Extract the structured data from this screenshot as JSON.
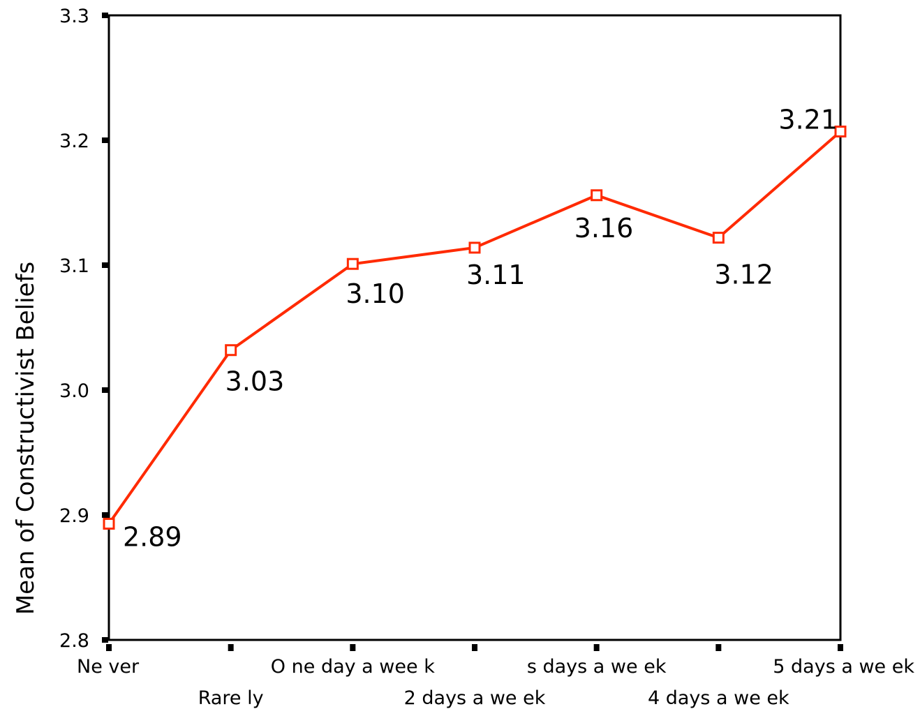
{
  "chart_data": {
    "type": "line",
    "title": "",
    "xlabel": "",
    "ylabel": "Mean of Constructivist Beliefs",
    "categories": [
      "Ne ver",
      "Rare ly",
      "O ne day a wee k",
      "2 days a we ek",
      "s days a we ek",
      "4 days a we ek",
      "5 days a we ek"
    ],
    "series": [
      {
        "values": [
          2.893,
          3.032,
          3.101,
          3.114,
          3.156,
          3.122,
          3.207
        ],
        "labels": [
          "2.89",
          "3.03",
          "3.10",
          "3.11",
          "3.16",
          "3.12",
          "3.21"
        ]
      }
    ],
    "ylim": [
      2.8,
      3.3
    ],
    "yticks": [
      "2.8",
      "2.9",
      "3.0",
      "3.1",
      "3.2",
      "3.3"
    ],
    "grid": false,
    "legend": "none",
    "line_color": "#ff2a00"
  }
}
